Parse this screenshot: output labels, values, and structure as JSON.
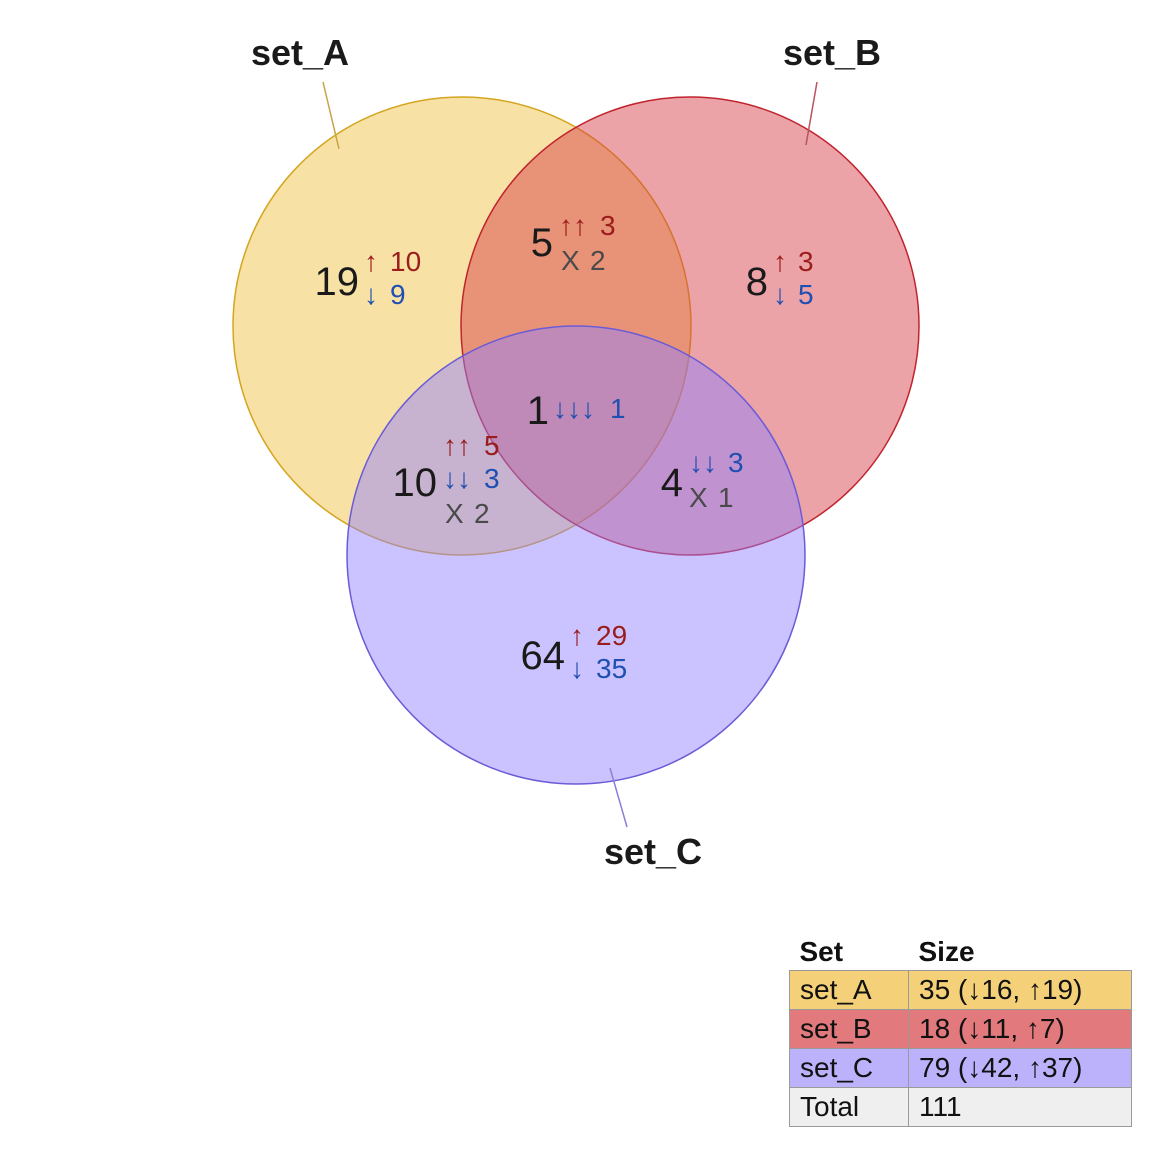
{
  "sets": [
    {
      "id": "A",
      "name": "set_A",
      "fill": "#f0c040",
      "stroke": "#d4a520"
    },
    {
      "id": "B",
      "name": "set_B",
      "fill": "#d63c44",
      "stroke": "#c0242e"
    },
    {
      "id": "C",
      "name": "set_C",
      "fill": "#9080ff",
      "stroke": "#6a5cd6"
    }
  ],
  "colors": {
    "up": "#9b1c1c",
    "down": "#1f4fb0",
    "mixed": "#4a4a4a"
  },
  "regions": [
    {
      "id": "A_only",
      "sets": [
        "set_A"
      ],
      "count": "19",
      "lines": [
        {
          "kind": "up",
          "arrows": "↑",
          "n": "10"
        },
        {
          "kind": "down",
          "arrows": "↓",
          "n": "9"
        }
      ]
    },
    {
      "id": "B_only",
      "sets": [
        "set_B"
      ],
      "count": "8",
      "lines": [
        {
          "kind": "up",
          "arrows": "↑",
          "n": "3"
        },
        {
          "kind": "down",
          "arrows": "↓",
          "n": "5"
        }
      ]
    },
    {
      "id": "C_only",
      "sets": [
        "set_C"
      ],
      "count": "64",
      "lines": [
        {
          "kind": "up",
          "arrows": "↑",
          "n": "29"
        },
        {
          "kind": "down",
          "arrows": "↓",
          "n": "35"
        }
      ]
    },
    {
      "id": "AB",
      "sets": [
        "set_A",
        "set_B"
      ],
      "count": "5",
      "lines": [
        {
          "kind": "up",
          "arrows": "↑↑",
          "n": "3"
        },
        {
          "kind": "mixed",
          "arrows": "X",
          "n": "2"
        }
      ]
    },
    {
      "id": "AC",
      "sets": [
        "set_A",
        "set_C"
      ],
      "count": "10",
      "lines": [
        {
          "kind": "up",
          "arrows": "↑↑",
          "n": "5"
        },
        {
          "kind": "down",
          "arrows": "↓↓",
          "n": "3"
        },
        {
          "kind": "mixed",
          "arrows": "X",
          "n": "2"
        }
      ]
    },
    {
      "id": "BC",
      "sets": [
        "set_B",
        "set_C"
      ],
      "count": "4",
      "lines": [
        {
          "kind": "down",
          "arrows": "↓↓",
          "n": "3"
        },
        {
          "kind": "mixed",
          "arrows": "X",
          "n": "1"
        }
      ]
    },
    {
      "id": "ABC",
      "sets": [
        "set_A",
        "set_B",
        "set_C"
      ],
      "count": "1",
      "lines": [
        {
          "kind": "down",
          "arrows": "↓↓↓",
          "n": "1"
        }
      ]
    }
  ],
  "table": {
    "headers": {
      "set": "Set",
      "size": "Size"
    },
    "rows": [
      {
        "set": "set_A",
        "size": "35 (↓16, ↑19)"
      },
      {
        "set": "set_B",
        "size": "18 (↓11, ↑7)"
      },
      {
        "set": "set_C",
        "size": "79 (↓42, ↑37)"
      },
      {
        "set": "Total",
        "size": "111"
      }
    ]
  }
}
